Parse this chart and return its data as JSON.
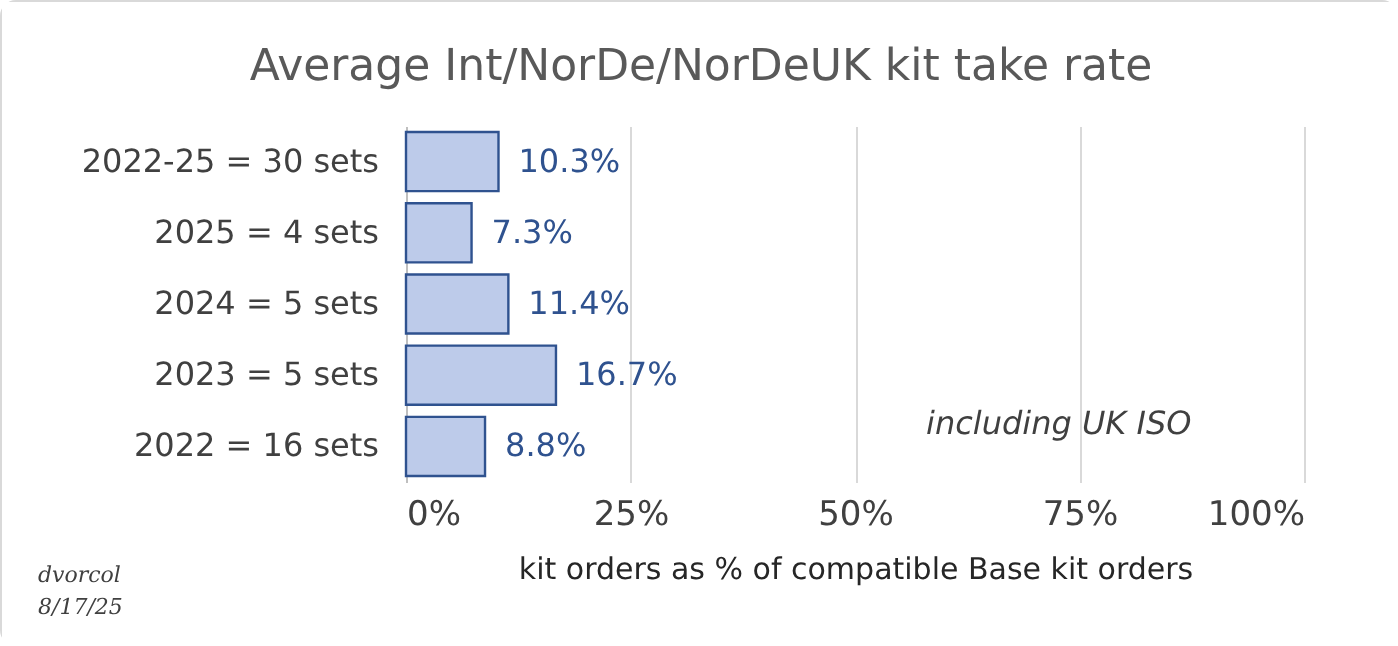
{
  "chart_data": {
    "type": "bar",
    "orientation": "horizontal",
    "title": "Average Int/NorDe/NorDeUK kit take rate",
    "xlabel": "kit orders as % of compatible Base kit orders",
    "categories": [
      "2022-25 = 30 sets",
      "2025 = 4 sets",
      "2024 = 5 sets",
      "2023 = 5 sets",
      "2022 = 16 sets"
    ],
    "values": [
      10.3,
      7.3,
      11.4,
      16.7,
      8.8
    ],
    "value_labels": [
      "10.3%",
      "7.3%",
      "11.4%",
      "16.7%",
      "8.8%"
    ],
    "color": "#bdcbea",
    "xlim": [
      0,
      100
    ],
    "xticks": [
      {
        "value": 0,
        "label": "0%"
      },
      {
        "value": 25,
        "label": "25%"
      },
      {
        "value": 50,
        "label": "50%"
      },
      {
        "value": 75,
        "label": "75%"
      },
      {
        "value": 100,
        "label": "100%"
      }
    ],
    "grid": "x",
    "annotations": [
      "including UK ISO",
      "dvorcol",
      "8/17/25"
    ]
  }
}
